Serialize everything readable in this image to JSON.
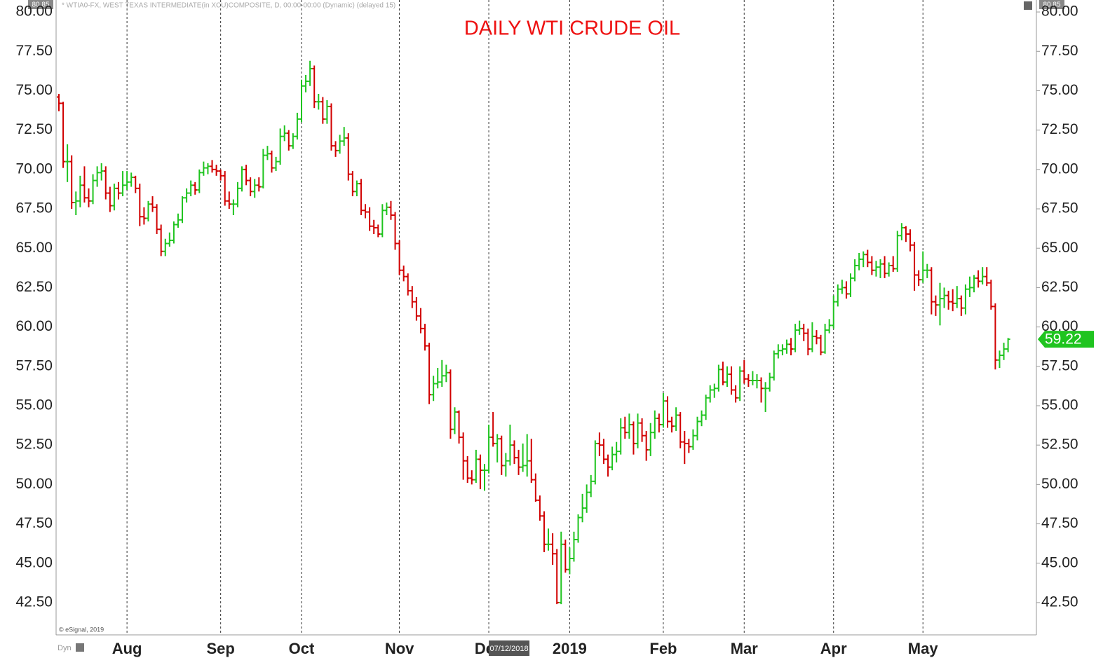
{
  "chart_data": {
    "type": "ohlc",
    "title": "DAILY WTI CRUDE OIL",
    "header": "* WTIA0-FX, WEST TEXAS INTERMEDIATE(in XCU)COMPOSITE, D, 00:00-00:00 (Dynamic) (delayed 15)",
    "corner_label": "80.85",
    "copyright": "© eSignal, 2019",
    "mode_label": "Dyn",
    "cursor_date": "07/12/2018",
    "up_color": "#1fc41f",
    "down_color": "#d10000",
    "ylim": [
      40.45,
      80.76
    ],
    "yticks": [
      {
        "value": 42.5,
        "label": "42.50"
      },
      {
        "value": 45,
        "label": "45.00"
      },
      {
        "value": 47.5,
        "label": "47.50"
      },
      {
        "value": 50,
        "label": "50.00"
      },
      {
        "value": 52.5,
        "label": "52.50"
      },
      {
        "value": 55,
        "label": "55.00"
      },
      {
        "value": 57.5,
        "label": "57.50"
      },
      {
        "value": 60,
        "label": "60.00"
      },
      {
        "value": 62.5,
        "label": "62.50"
      },
      {
        "value": 65,
        "label": "65.00"
      },
      {
        "value": 67.5,
        "label": "67.50"
      },
      {
        "value": 70,
        "label": "70.00"
      },
      {
        "value": 72.5,
        "label": "72.50"
      },
      {
        "value": 75,
        "label": "75.00"
      },
      {
        "value": 77.5,
        "label": "77.50"
      },
      {
        "value": 80,
        "label": "80.00"
      }
    ],
    "xticks": [
      {
        "value": 16,
        "label": "Aug"
      },
      {
        "value": 38,
        "label": "Sep"
      },
      {
        "value": 57,
        "label": "Oct"
      },
      {
        "value": 80,
        "label": "Nov"
      },
      {
        "value": 101,
        "label": "Dec"
      },
      {
        "value": 120,
        "label": "2019"
      },
      {
        "value": 142,
        "label": "Feb"
      },
      {
        "value": 161,
        "label": "Mar"
      },
      {
        "value": 182,
        "label": "Apr"
      },
      {
        "value": 203,
        "label": "May"
      }
    ],
    "values": [
      [
        74.6,
        74.8,
        73.7,
        74.2
      ],
      [
        74.2,
        74.3,
        70.1,
        70.5
      ],
      [
        70.5,
        71.6,
        69.2,
        70.5
      ],
      [
        70.5,
        70.9,
        67.5,
        67.9
      ],
      [
        67.9,
        68.6,
        67.1,
        68
      ],
      [
        68,
        69.6,
        67.6,
        69
      ],
      [
        69,
        70.2,
        67.9,
        68.2
      ],
      [
        68.2,
        68.8,
        67.6,
        68
      ],
      [
        68,
        69.7,
        67.8,
        69.3
      ],
      [
        69.3,
        70.2,
        68.9,
        69.8
      ],
      [
        69.8,
        70.4,
        69.3,
        69.9
      ],
      [
        69.9,
        70.2,
        68.1,
        68.5
      ],
      [
        68.5,
        68.9,
        67.3,
        67.7
      ],
      [
        67.7,
        69.1,
        67.4,
        68.8
      ],
      [
        68.8,
        69.2,
        68.1,
        68.5
      ],
      [
        68.5,
        69.9,
        68.3,
        69.0
      ],
      [
        69,
        69.9,
        68.7,
        69.2
      ],
      [
        69.2,
        69.8,
        68.9,
        69.5
      ],
      [
        69.5,
        69.6,
        68.5,
        68.8
      ],
      [
        68.8,
        69.1,
        66.4,
        67
      ],
      [
        67,
        67.6,
        66.5,
        66.9
      ],
      [
        66.9,
        68,
        66.7,
        67.8
      ],
      [
        67.8,
        68.3,
        67.3,
        67.6
      ],
      [
        67.6,
        67.8,
        65.9,
        66.2
      ],
      [
        66.2,
        66.5,
        64.5,
        64.8
      ],
      [
        64.8,
        65.6,
        64.5,
        65.3
      ],
      [
        65.3,
        66,
        65.1,
        65.5
      ],
      [
        65.5,
        66.7,
        65.3,
        66.5
      ],
      [
        66.5,
        67.2,
        66.3,
        66.8
      ],
      [
        66.8,
        68.3,
        66.6,
        68.2
      ],
      [
        68.2,
        68.8,
        67.9,
        68.5
      ],
      [
        68.5,
        69.3,
        68.3,
        69
      ],
      [
        69,
        69.2,
        68.4,
        68.7
      ],
      [
        68.7,
        70,
        68.5,
        69.8
      ],
      [
        69.8,
        70.5,
        69.6,
        70.1
      ],
      [
        70.1,
        70.4,
        69.7,
        70.2
      ],
      [
        70.2,
        70.6,
        69.8,
        70.0
      ],
      [
        70,
        70.3,
        69.6,
        69.9
      ],
      [
        69.9,
        70,
        69.3,
        69.6
      ],
      [
        69.6,
        69.9,
        67.7,
        68
      ],
      [
        68,
        68.6,
        67.5,
        67.8
      ],
      [
        67.8,
        68.1,
        67.1,
        67.8
      ],
      [
        67.8,
        69.2,
        67.6,
        68.8
      ],
      [
        68.8,
        70.2,
        68.6,
        70
      ],
      [
        70,
        70.3,
        69,
        69.3
      ],
      [
        69.3,
        69.5,
        68.3,
        68.6
      ],
      [
        68.6,
        69.4,
        68.2,
        69
      ],
      [
        69,
        69.5,
        68.6,
        68.9
      ],
      [
        68.9,
        71.3,
        68.8,
        70.9
      ],
      [
        70.9,
        71.5,
        70.6,
        71
      ],
      [
        71,
        71.2,
        69.8,
        70.1
      ],
      [
        70.1,
        70.8,
        69.9,
        70.5
      ],
      [
        70.5,
        72.6,
        70.3,
        72.1
      ],
      [
        72.1,
        72.8,
        71.8,
        72.3
      ],
      [
        72.3,
        72.5,
        71.2,
        71.5
      ],
      [
        71.5,
        72.3,
        71.3,
        72.1
      ],
      [
        72.1,
        73.6,
        71.9,
        73.2
      ],
      [
        73.2,
        75.7,
        73,
        75.3
      ],
      [
        75.3,
        76,
        74.9,
        75.6
      ],
      [
        75.6,
        76.9,
        75.3,
        76.4
      ],
      [
        76.4,
        76.6,
        73.9,
        74.3
      ],
      [
        74.3,
        74.8,
        73.8,
        74.3
      ],
      [
        74.3,
        74.6,
        72.9,
        73.2
      ],
      [
        73.2,
        74.4,
        72.9,
        74
      ],
      [
        74,
        74.2,
        71.2,
        71.5
      ],
      [
        71.5,
        71.8,
        70.8,
        71.2
      ],
      [
        71.2,
        72.2,
        71,
        71.8
      ],
      [
        71.8,
        72.7,
        71.5,
        72
      ],
      [
        72,
        72.3,
        69.3,
        69.7
      ],
      [
        69.7,
        69.9,
        68.3,
        68.6
      ],
      [
        68.6,
        69.3,
        68.3,
        69.1
      ],
      [
        69.1,
        69.4,
        67.1,
        67.4
      ],
      [
        67.4,
        67.8,
        66.9,
        67.3
      ],
      [
        67.3,
        67.6,
        66.1,
        66.4
      ],
      [
        66.4,
        66.8,
        65.9,
        66.3
      ],
      [
        66.3,
        66.5,
        65.7,
        65.9
      ],
      [
        65.9,
        67.8,
        65.7,
        67.4
      ],
      [
        67.4,
        67.9,
        67.1,
        67.6
      ],
      [
        67.6,
        68,
        66.8,
        67.1
      ],
      [
        67.1,
        67.3,
        64.9,
        65.3
      ],
      [
        65.3,
        65.5,
        63.3,
        63.6
      ],
      [
        63.6,
        63.9,
        62.9,
        63.2
      ],
      [
        63.2,
        63.4,
        62,
        62.3
      ],
      [
        62.3,
        62.6,
        61.2,
        61.6
      ],
      [
        61.6,
        61.9,
        60.4,
        60.7
      ],
      [
        60.7,
        61.2,
        59.6,
        59.9
      ],
      [
        59.9,
        60.2,
        58.5,
        58.8
      ],
      [
        58.8,
        59,
        55.1,
        55.7
      ],
      [
        55.7,
        56.9,
        55.3,
        56.4
      ],
      [
        56.4,
        57.4,
        56.1,
        56.5
      ],
      [
        56.5,
        57.9,
        56.2,
        56.9
      ],
      [
        56.9,
        57.6,
        56.5,
        57.1
      ],
      [
        57.1,
        57.3,
        52.9,
        53.5
      ],
      [
        53.5,
        54.9,
        53.2,
        54.6
      ],
      [
        54.6,
        54.7,
        52.6,
        53
      ],
      [
        53,
        53.3,
        50.3,
        51.5
      ],
      [
        51.5,
        51.8,
        50.1,
        50.4
      ],
      [
        50.4,
        50.9,
        50,
        50.3
      ],
      [
        50.3,
        52.2,
        50.1,
        51.6
      ],
      [
        51.6,
        51.9,
        49.7,
        50.9
      ],
      [
        50.9,
        51.3,
        49.6,
        50.9
      ],
      [
        50.9,
        53.8,
        50.7,
        53.0
      ],
      [
        53,
        54.6,
        52.4,
        52.6
      ],
      [
        52.6,
        53.2,
        51.4,
        52.9
      ],
      [
        52.9,
        53.1,
        50.6,
        51.2
      ],
      [
        51.2,
        52,
        50.5,
        51.5
      ],
      [
        51.5,
        53.8,
        51.2,
        52.5
      ],
      [
        52.5,
        52.8,
        51.3,
        51.7
      ],
      [
        51.7,
        52.2,
        50.6,
        51.1
      ],
      [
        51.1,
        52.6,
        50.8,
        51.2
      ],
      [
        51.2,
        53.2,
        50.5,
        51.5
      ],
      [
        51.5,
        52.9,
        50.1,
        50.3
      ],
      [
        50.3,
        50.7,
        48.9,
        49.0
      ],
      [
        49,
        49.3,
        47.7,
        48.0
      ],
      [
        48,
        48.3,
        45.7,
        46.2
      ],
      [
        46.2,
        47.2,
        45.8,
        46.2
      ],
      [
        46.2,
        46.9,
        44.9,
        45.6
      ],
      [
        45.6,
        45.9,
        42.4,
        42.5
      ],
      [
        42.5,
        47,
        42.4,
        46.2
      ],
      [
        46.2,
        46.5,
        44.4,
        44.6
      ],
      [
        44.6,
        46,
        44.3,
        45.3
      ],
      [
        45.3,
        47,
        45.1,
        46.5
      ],
      [
        46.5,
        48.1,
        46.3,
        47.9
      ],
      [
        47.9,
        49.4,
        47.6,
        48.5
      ],
      [
        48.5,
        50,
        48.2,
        49.5
      ],
      [
        49.5,
        50.6,
        49.2,
        50.2
      ],
      [
        50.2,
        52.8,
        50,
        52.6
      ],
      [
        52.6,
        53.3,
        51.8,
        52.5
      ],
      [
        52.5,
        52.9,
        51.3,
        51.6
      ],
      [
        51.6,
        51.9,
        50.5,
        51.1
      ],
      [
        51.1,
        52.4,
        50.9,
        51.9
      ],
      [
        51.9,
        52.7,
        51.4,
        52.1
      ],
      [
        52.1,
        54.2,
        51.9,
        53.6
      ],
      [
        53.6,
        54.3,
        52.9,
        53.3
      ],
      [
        53.3,
        54.5,
        52.9,
        53.8
      ],
      [
        53.8,
        54,
        51.9,
        52.6
      ],
      [
        52.6,
        54.5,
        52.3,
        53.9
      ],
      [
        53.9,
        54.2,
        52.7,
        53.1
      ],
      [
        53.1,
        53.4,
        51.5,
        52.2
      ],
      [
        52.2,
        53.9,
        51.8,
        53.3
      ],
      [
        53.3,
        54.7,
        52.9,
        54.2
      ],
      [
        54.2,
        54.5,
        53.3,
        53.8
      ],
      [
        53.8,
        55.8,
        53.6,
        55.3
      ],
      [
        55.3,
        55.6,
        53.6,
        54.0
      ],
      [
        54,
        54.3,
        53.3,
        53.7
      ],
      [
        53.7,
        54.9,
        53.4,
        54.4
      ],
      [
        54.4,
        54.6,
        52.3,
        52.7
      ],
      [
        52.7,
        53.4,
        51.3,
        52.6
      ],
      [
        52.6,
        52.9,
        52,
        52.4
      ],
      [
        52.4,
        53.5,
        52.2,
        53.1
      ],
      [
        53.1,
        54.3,
        52.8,
        54
      ],
      [
        54,
        54.7,
        53.7,
        54.4
      ],
      [
        54.4,
        55.7,
        54.1,
        55.5
      ],
      [
        55.5,
        56.3,
        55.2,
        56
      ],
      [
        56,
        56.4,
        55.5,
        56.1
      ],
      [
        56.1,
        57.6,
        55.9,
        57.3
      ],
      [
        57.3,
        57.8,
        56.3,
        56.5
      ],
      [
        56.5,
        57.5,
        56.2,
        57
      ],
      [
        57,
        57.5,
        55.7,
        56
      ],
      [
        56,
        56.3,
        55.2,
        55.5
      ],
      [
        55.5,
        57.5,
        55.3,
        57.2
      ],
      [
        57.2,
        57.9,
        56.4,
        56.7
      ],
      [
        56.7,
        57,
        56.2,
        56.6
      ],
      [
        56.6,
        57.2,
        56.3,
        56.6
      ],
      [
        56.6,
        57,
        56.1,
        56.6
      ],
      [
        56.6,
        56.8,
        55.2,
        56.1
      ],
      [
        56.1,
        56.5,
        54.6,
        56.1
      ],
      [
        56.1,
        57.1,
        55.9,
        56.8
      ],
      [
        56.8,
        58.5,
        56.6,
        58.3
      ],
      [
        58.3,
        58.9,
        58,
        58.5
      ],
      [
        58.5,
        58.9,
        58.2,
        58.6
      ],
      [
        58.6,
        59.2,
        58.3,
        58.9
      ],
      [
        58.9,
        59.3,
        58.2,
        58.6
      ],
      [
        58.6,
        60.2,
        58.4,
        59.8
      ],
      [
        59.8,
        60.4,
        59.5,
        59.9
      ],
      [
        59.9,
        60.2,
        59.1,
        59.6
      ],
      [
        59.6,
        59.9,
        58.2,
        58.6
      ],
      [
        58.6,
        60.3,
        58.4,
        59.4
      ],
      [
        59.4,
        59.8,
        58.9,
        59.3
      ],
      [
        59.3,
        59.5,
        58.2,
        58.4
      ],
      [
        58.4,
        60.2,
        58.3,
        59.8
      ],
      [
        59.8,
        60.5,
        59.6,
        60.1
      ],
      [
        60.1,
        62,
        59.9,
        61.6
      ],
      [
        61.6,
        62.7,
        61.3,
        62.4
      ],
      [
        62.4,
        63,
        62.1,
        62.5
      ],
      [
        62.5,
        62.9,
        61.8,
        62.1
      ],
      [
        62.1,
        63.4,
        61.9,
        63.1
      ],
      [
        63.1,
        64.3,
        62.9,
        63.9
      ],
      [
        63.9,
        64.7,
        63.6,
        64.3
      ],
      [
        64.3,
        64.8,
        63.8,
        64.6
      ],
      [
        64.6,
        64.9,
        63.8,
        64.1
      ],
      [
        64.1,
        64.5,
        63.3,
        63.6
      ],
      [
        63.6,
        64.2,
        63.2,
        63.8
      ],
      [
        63.8,
        64.3,
        63.1,
        64
      ],
      [
        64,
        64.5,
        63.1,
        63.4
      ],
      [
        63.4,
        64.1,
        63.2,
        63.9
      ],
      [
        63.9,
        64.5,
        63.5,
        63.7
      ],
      [
        63.7,
        66.1,
        63.5,
        65.8
      ],
      [
        65.8,
        66.6,
        65.5,
        66.3
      ],
      [
        66.3,
        66.4,
        65.4,
        65.9
      ],
      [
        65.9,
        66.2,
        64.8,
        65.2
      ],
      [
        65.2,
        65.4,
        62.3,
        63.3
      ],
      [
        63.3,
        63.6,
        62.6,
        63.0
      ],
      [
        63,
        64.8,
        62.8,
        63.6
      ],
      [
        63.6,
        64,
        63.1,
        63.6
      ],
      [
        63.6,
        63.8,
        60.8,
        61.6
      ],
      [
        61.6,
        62,
        60.7,
        61.4
      ],
      [
        61.4,
        62.8,
        60.1,
        61.8
      ],
      [
        61.8,
        62.5,
        61.2,
        62
      ],
      [
        62,
        62.3,
        61.1,
        61.6
      ],
      [
        61.6,
        62.4,
        61,
        61.5
      ],
      [
        61.5,
        62.6,
        61.2,
        61.8
      ],
      [
        61.8,
        62,
        60.7,
        61.2
      ],
      [
        61.2,
        62.7,
        60.8,
        62.4
      ],
      [
        62.4,
        63.2,
        61.9,
        62.5
      ],
      [
        62.5,
        63.3,
        62.2,
        63.1
      ],
      [
        63.1,
        63.6,
        62.5,
        62.9
      ],
      [
        62.9,
        63.8,
        62.7,
        63.2
      ],
      [
        63.2,
        63.8,
        62.6,
        62.8
      ],
      [
        62.8,
        63,
        61.1,
        61.3
      ],
      [
        61.3,
        61.5,
        57.3,
        57.9
      ],
      [
        57.9,
        58.5,
        57.4,
        58.2
      ],
      [
        58.2,
        59,
        57.9,
        58.6
      ],
      [
        58.6,
        59.3,
        58.4,
        59.22
      ]
    ]
  }
}
